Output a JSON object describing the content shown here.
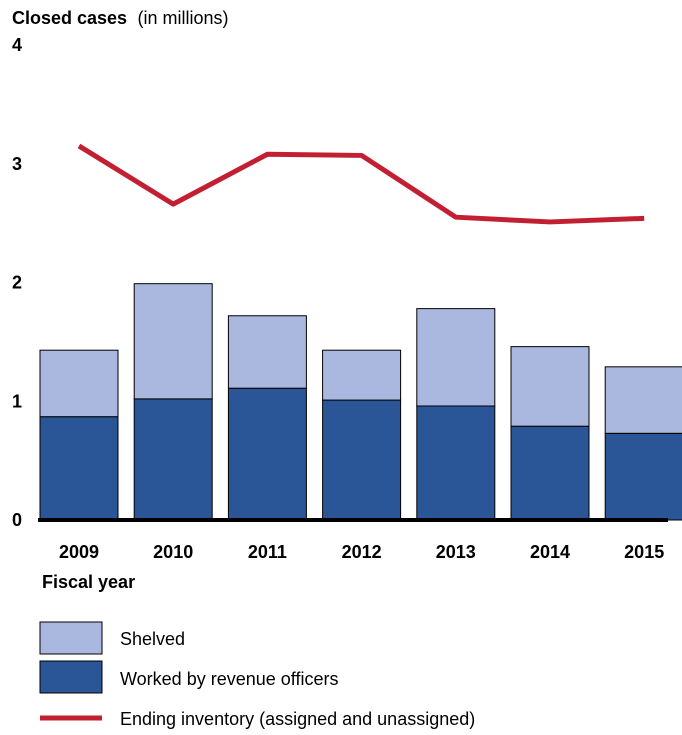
{
  "chart_data": {
    "type": "bar",
    "title": "Closed cases",
    "title_suffix": "(in millions)",
    "xlabel": "Fiscal year",
    "ylabel": "",
    "ylim": [
      0,
      4
    ],
    "yticks": [
      "0",
      "1",
      "2",
      "3",
      "4"
    ],
    "categories": [
      "2009",
      "2010",
      "2011",
      "2012",
      "2013",
      "2014",
      "2015"
    ],
    "stacked": true,
    "series": [
      {
        "name": "Worked by revenue officers",
        "color": "#2a5597",
        "values": [
          0.87,
          1.02,
          1.11,
          1.01,
          0.96,
          0.79,
          0.73
        ]
      },
      {
        "name": "Shelved",
        "color": "#aab8e0",
        "values": [
          0.56,
          0.97,
          0.61,
          0.42,
          0.82,
          0.67,
          0.56
        ]
      }
    ],
    "line_series": {
      "name": "Ending inventory (assigned and unassigned)",
      "color": "#c22032",
      "values": [
        3.15,
        2.66,
        3.08,
        3.07,
        2.55,
        2.51,
        2.54
      ]
    },
    "grid": false,
    "legend_position": "bottom-left"
  }
}
